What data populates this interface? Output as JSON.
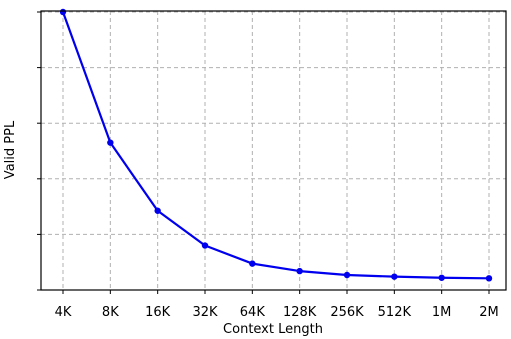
{
  "chart_data": {
    "type": "line",
    "categories": [
      "4K",
      "8K",
      "16K",
      "32K",
      "64K",
      "128K",
      "256K",
      "512K",
      "1M",
      "2M"
    ],
    "series": [
      {
        "values": [
          1.0,
          0.53,
          0.285,
          0.16,
          0.095,
          0.068,
          0.054,
          0.048,
          0.044,
          0.042
        ],
        "color": "#0000ee"
      }
    ],
    "xlabel": "Context Length",
    "ylabel": "Valid PPL",
    "ylim": [
      0,
      1.0
    ],
    "y_ticks": [
      0,
      0.2,
      0.4,
      0.6,
      0.8,
      1.0
    ],
    "y_tick_labels_shown": false,
    "grid": true,
    "legend": "none"
  }
}
